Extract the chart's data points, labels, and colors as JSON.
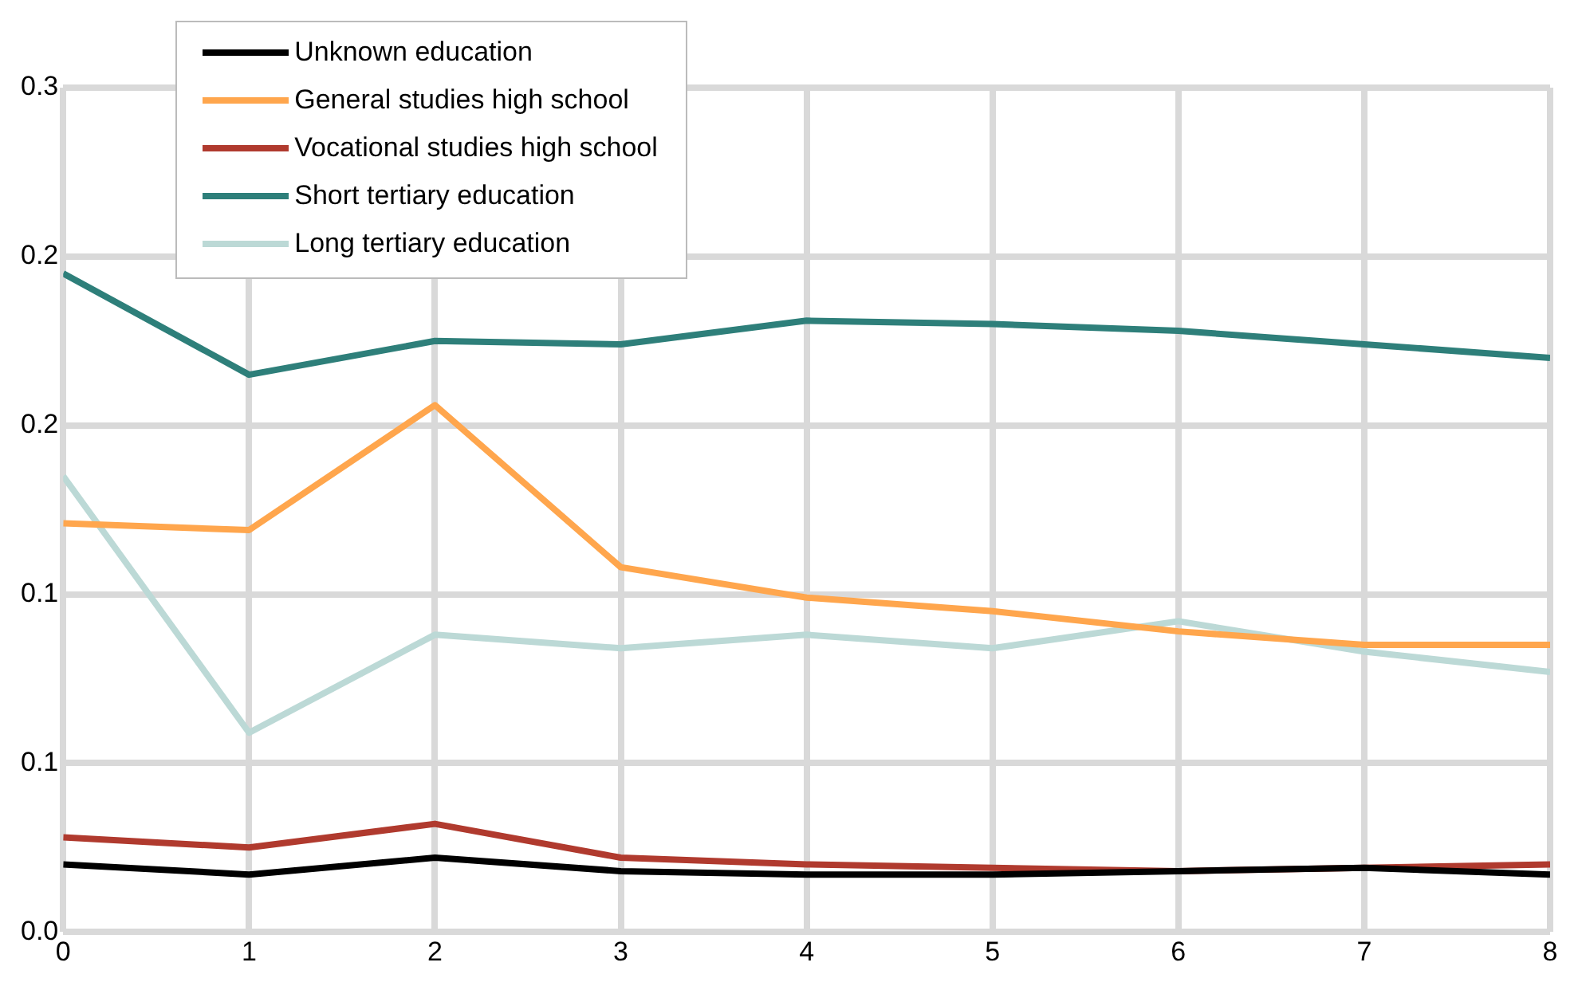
{
  "chart_data": {
    "type": "line",
    "x": [
      0,
      1,
      2,
      3,
      4,
      5,
      6,
      7,
      8
    ],
    "xlim": [
      0,
      8
    ],
    "xticks": [
      0,
      1,
      2,
      3,
      4,
      5,
      6,
      7,
      8
    ],
    "ylim": [
      0,
      0.25
    ],
    "yticks": [
      {
        "value": 0,
        "label": "0.0"
      },
      {
        "value": 0.05,
        "label": "0.1"
      },
      {
        "value": 0.1,
        "label": "0.1"
      },
      {
        "value": 0.15,
        "label": "0.2"
      },
      {
        "value": 0.2,
        "label": "0.2"
      },
      {
        "value": 0.25,
        "label": "0.3"
      }
    ],
    "grid": true,
    "legend": "top left",
    "marker": "none",
    "line_style": "solid",
    "series": [
      {
        "name": "Unknown education",
        "color": "#000000",
        "values": [
          0.02,
          0.017,
          0.022,
          0.018,
          0.017,
          0.017,
          0.018,
          0.019,
          0.017
        ]
      },
      {
        "name": "General studies high school",
        "color": "#ffa64d",
        "values": [
          0.121,
          0.119,
          0.156,
          0.108,
          0.099,
          0.095,
          0.089,
          0.085,
          0.085
        ]
      },
      {
        "name": "Vocational studies high school",
        "color": "#b03a2e",
        "values": [
          0.028,
          0.025,
          0.032,
          0.022,
          0.02,
          0.019,
          0.018,
          0.019,
          0.02
        ]
      },
      {
        "name": "Short tertiary education",
        "color": "#2e7f7a",
        "values": [
          0.195,
          0.165,
          0.175,
          0.174,
          0.181,
          0.18,
          0.178,
          0.174,
          0.17
        ]
      },
      {
        "name": "Long tertiary education",
        "color": "#bcd9d6",
        "values": [
          0.135,
          0.059,
          0.088,
          0.084,
          0.088,
          0.084,
          0.092,
          0.083,
          0.077
        ]
      }
    ]
  }
}
